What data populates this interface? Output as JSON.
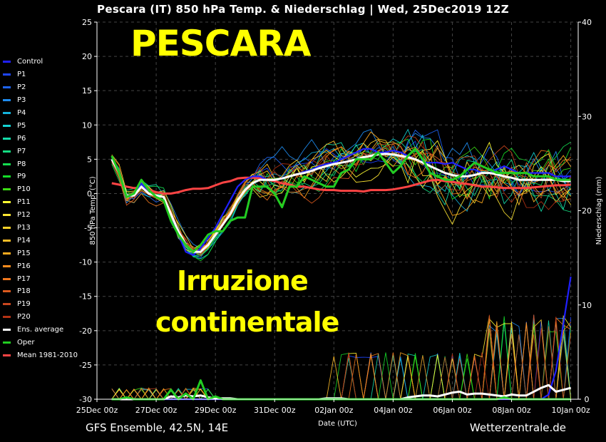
{
  "title": "Pescara  (IT)  850 hPa Temp. & Niederschlag | Wed, 25Dec2019 12Z",
  "overlay": {
    "city": "PESCARA",
    "line1": "Irruzione",
    "line2": "continentale"
  },
  "footer": {
    "left": "GFS Ensemble, 42.5N, 14E",
    "right": "Wetterzentrale.de"
  },
  "chart_data": {
    "type": "line",
    "xlabel": "Date (UTC)",
    "ylabel": "850 hPa Temp. (°C)",
    "y2label": "Niederschlag (mm)",
    "ylim": [
      -30,
      25
    ],
    "y2lim": [
      0,
      40
    ],
    "xlim": [
      0,
      16.25
    ],
    "x_unit": "days after 25Dec 00z",
    "grid": true,
    "legend_position": "left",
    "x_ticks": [
      {
        "x": 0,
        "label": "25Dec 00z"
      },
      {
        "x": 2,
        "label": "27Dec 00z"
      },
      {
        "x": 4,
        "label": "29Dec 00z"
      },
      {
        "x": 6,
        "label": "31Dec 00z"
      },
      {
        "x": 8,
        "label": "02Jan 00z"
      },
      {
        "x": 10,
        "label": "04Jan 00z"
      },
      {
        "x": 12,
        "label": "06Jan 00z"
      },
      {
        "x": 14,
        "label": "08Jan 00z"
      },
      {
        "x": 16,
        "label": "10Jan 00z"
      }
    ],
    "y_ticks": [
      25,
      20,
      15,
      10,
      5,
      0,
      -5,
      -10,
      -15,
      -20,
      -25,
      -30
    ],
    "y2_ticks": [
      40,
      30,
      20,
      10,
      0
    ],
    "series_start_x": 0.5,
    "series_step": 0.25,
    "highlight_series": [
      {
        "name": "Control",
        "color": "#2020ff",
        "temp": [
          5,
          3,
          -0.5,
          -0.3,
          1.5,
          0,
          -0.3,
          -0.5,
          -3,
          -6,
          -8.5,
          -9,
          -8,
          -6.5,
          -5,
          -3,
          -1,
          1,
          2,
          2.5,
          2.5,
          2,
          2,
          2.2,
          2.5,
          2.8,
          3.2,
          3.5,
          4,
          4.3,
          4.5,
          5,
          5.5,
          6,
          6.5,
          6.5,
          6,
          6,
          6.3,
          6,
          5.5,
          5,
          4.5,
          4.5,
          4.5,
          4.3,
          4.5,
          4,
          3.5,
          3.5,
          3,
          3,
          3.5,
          4,
          3.5,
          3,
          3,
          3,
          3,
          3,
          2.5,
          2.5,
          2.5
        ],
        "precip": [
          0,
          0,
          0,
          0,
          0,
          0,
          0,
          0,
          0,
          0,
          0,
          0,
          0,
          0,
          0,
          0,
          0,
          0,
          0,
          0,
          0,
          0,
          0,
          0,
          0,
          0,
          0,
          0,
          0,
          0,
          0,
          0,
          0,
          0,
          0,
          0,
          0,
          0,
          0,
          0,
          0,
          0,
          0,
          0,
          0,
          0,
          0,
          0,
          0,
          0,
          0,
          0,
          0,
          0,
          0,
          0,
          0,
          0,
          0,
          0.5,
          3,
          8,
          13
        ]
      },
      {
        "name": "Oper",
        "color": "#22cc22",
        "temp": [
          5.5,
          3,
          -0.5,
          0,
          2,
          0.5,
          -0.5,
          -1,
          -4,
          -6,
          -7.5,
          -8.5,
          -7.5,
          -6,
          -5.5,
          -5.5,
          -4,
          -3.5,
          -3.5,
          1,
          1,
          1,
          0,
          -2,
          1,
          1,
          2.5,
          2,
          1.5,
          1,
          1,
          3,
          3.5,
          5,
          5,
          5,
          6,
          4.5,
          3,
          4,
          5.5,
          6.5,
          5,
          3,
          2.5,
          2,
          2,
          2.5,
          3.5,
          4.5,
          4,
          3.5,
          3,
          3,
          3,
          3,
          3,
          2.5,
          2.5,
          2.5,
          2,
          2,
          2
        ],
        "precip": [
          0,
          0,
          0.2,
          0,
          0,
          0,
          0,
          0,
          1,
          0,
          0.6,
          0,
          2,
          0,
          0.3,
          0,
          0,
          0,
          0,
          0,
          0,
          0,
          0,
          0,
          0,
          0,
          0,
          0,
          0,
          0,
          0,
          0,
          0,
          0,
          0,
          0,
          0,
          0,
          0,
          0,
          0,
          0,
          0,
          0,
          0,
          0,
          0,
          0,
          0,
          0,
          0,
          0,
          0,
          0.2,
          0,
          0,
          0,
          0,
          0,
          0,
          0,
          0,
          0
        ]
      },
      {
        "name": "Ens. average",
        "color": "#ffffff",
        "temp": [
          5,
          3,
          -0.3,
          -0.3,
          1,
          0,
          -0.3,
          -0.5,
          -3,
          -5.5,
          -7.5,
          -8.5,
          -8.5,
          -7.5,
          -6,
          -4.5,
          -3,
          -1,
          0.5,
          1.5,
          2,
          2,
          2,
          2.2,
          2.5,
          2.8,
          3,
          3.3,
          3.7,
          4,
          4.3,
          4.5,
          4.7,
          5,
          5.3,
          5.5,
          5.7,
          5.8,
          5.7,
          5.5,
          5.3,
          5,
          4.5,
          4,
          3.5,
          3,
          2.7,
          2.5,
          2.5,
          2.7,
          3,
          3,
          2.8,
          2.5,
          2.3,
          2,
          2,
          2,
          2,
          2,
          2,
          1.8,
          1.8
        ],
        "precip": [
          0,
          0,
          0,
          0,
          0,
          0,
          0,
          0,
          0.3,
          0.2,
          0.4,
          0.3,
          0.4,
          0.2,
          0.1,
          0.1,
          0.1,
          0,
          0,
          0,
          0,
          0,
          0,
          0,
          0,
          0,
          0,
          0,
          0,
          0.1,
          0.1,
          0.1,
          0,
          0,
          0,
          0,
          0,
          0,
          0,
          0,
          0.2,
          0.3,
          0.4,
          0.4,
          0.3,
          0.5,
          0.7,
          0.8,
          0.5,
          0.6,
          0.6,
          0.5,
          0.4,
          0.3,
          0.5,
          0.4,
          0.4,
          0.8,
          1.2,
          1.5,
          0.8,
          1,
          1.2
        ]
      },
      {
        "name": "Mean 1981-2010",
        "color": "#ff4444",
        "temp": [
          1.5,
          1.3,
          1,
          0.8,
          0.8,
          0.5,
          0.2,
          0,
          0,
          0.2,
          0.5,
          0.7,
          0.7,
          0.8,
          1.2,
          1.6,
          1.8,
          2.2,
          2.3,
          2.3,
          2.2,
          2,
          1.8,
          1.5,
          1.3,
          1,
          1,
          0.8,
          0.6,
          0.5,
          0.5,
          0.4,
          0.4,
          0.4,
          0.3,
          0.5,
          0.5,
          0.5,
          0.6,
          0.8,
          1,
          1.3,
          1.6,
          1.9,
          2,
          1.8,
          1.7,
          1.5,
          1.4,
          1.2,
          1,
          1,
          0.9,
          0.8,
          0.8,
          0.8,
          0.8,
          0.9,
          1,
          1.1,
          1.2,
          1.2,
          1.3
        ]
      }
    ],
    "legend": [
      {
        "name": "Control",
        "color": "#2020ff"
      },
      {
        "name": "P1",
        "color": "#1e46ff"
      },
      {
        "name": "P2",
        "color": "#1e64f5"
      },
      {
        "name": "P3",
        "color": "#1e8cf0"
      },
      {
        "name": "P4",
        "color": "#14b4dc"
      },
      {
        "name": "P5",
        "color": "#14d2d2"
      },
      {
        "name": "P6",
        "color": "#14dcaa"
      },
      {
        "name": "P7",
        "color": "#14dc82"
      },
      {
        "name": "P8",
        "color": "#14dc50"
      },
      {
        "name": "P9",
        "color": "#14dc28"
      },
      {
        "name": "P10",
        "color": "#3cdc14"
      },
      {
        "name": "P11",
        "color": "#ffff32"
      },
      {
        "name": "P12",
        "color": "#ffe632"
      },
      {
        "name": "P13",
        "color": "#ffd228"
      },
      {
        "name": "P14",
        "color": "#ffbe28"
      },
      {
        "name": "P15",
        "color": "#ffaa1e"
      },
      {
        "name": "P16",
        "color": "#ff8c1e"
      },
      {
        "name": "P17",
        "color": "#f0781e"
      },
      {
        "name": "P18",
        "color": "#dc5a1e"
      },
      {
        "name": "P19",
        "color": "#c8461e"
      },
      {
        "name": "P20",
        "color": "#b43214"
      },
      {
        "name": "Ens. average",
        "color": "#ffffff"
      },
      {
        "name": "Oper",
        "color": "#22cc22"
      },
      {
        "name": "Mean 1981-2010",
        "color": "#ff4444"
      }
    ]
  }
}
